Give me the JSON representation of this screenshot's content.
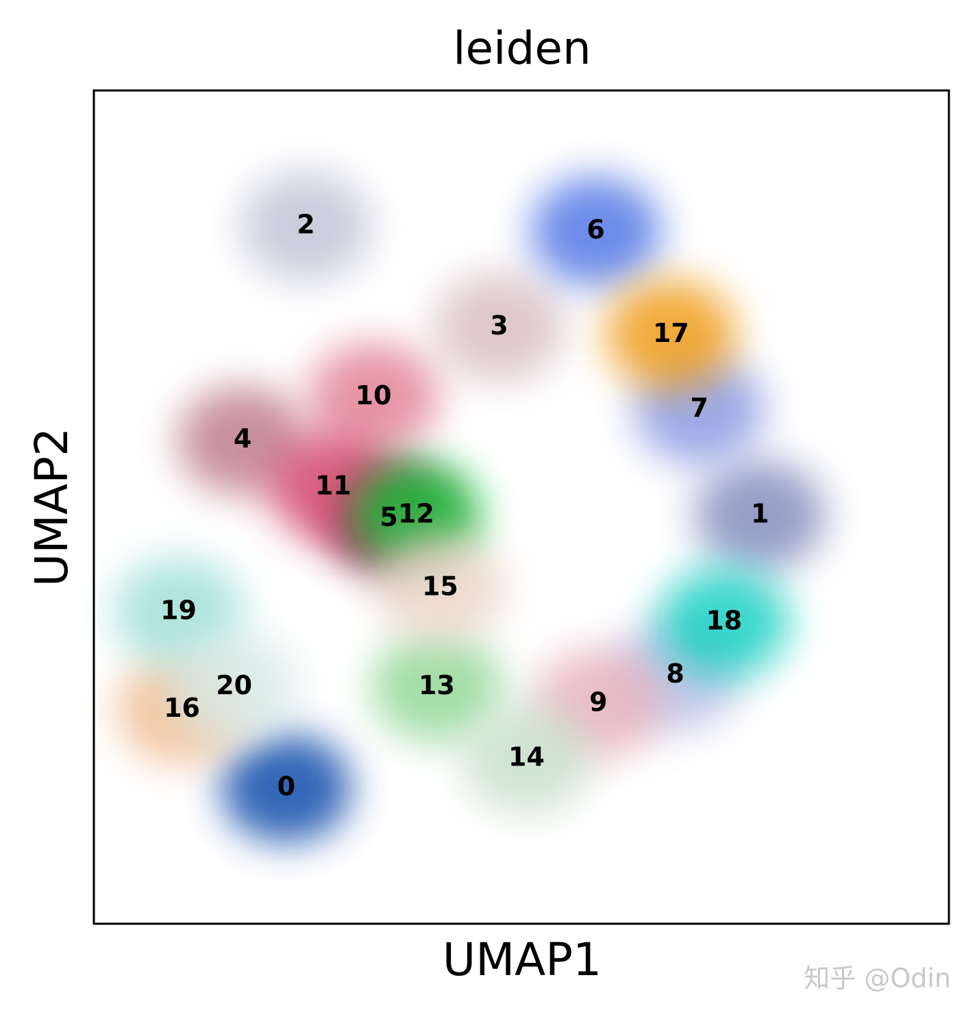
{
  "chart_data": {
    "type": "scatter",
    "title": "leiden",
    "xlabel": "UMAP1",
    "ylabel": "UMAP2",
    "xlim": [
      0,
      100
    ],
    "ylim": [
      0,
      100
    ],
    "watermark": "知乎 @Odin",
    "series": [
      {
        "name": "0",
        "color": "#023fa5",
        "x": 22.5,
        "y": 16.3
      },
      {
        "name": "1",
        "color": "#7d87b9",
        "x": 77.9,
        "y": 49.0
      },
      {
        "name": "2",
        "color": "#bec1d4",
        "x": 24.8,
        "y": 83.7
      },
      {
        "name": "3",
        "color": "#d6bcc0",
        "x": 47.4,
        "y": 71.6
      },
      {
        "name": "4",
        "color": "#bb7784",
        "x": 17.4,
        "y": 58.0
      },
      {
        "name": "5",
        "color": "#8e063b",
        "x": 34.5,
        "y": 48.6
      },
      {
        "name": "6",
        "color": "#4a6fe3",
        "x": 58.7,
        "y": 83.1
      },
      {
        "name": "7",
        "color": "#8595e1",
        "x": 70.8,
        "y": 61.7
      },
      {
        "name": "8",
        "color": "#b5bbe3",
        "x": 68.0,
        "y": 29.8
      },
      {
        "name": "9",
        "color": "#e6afb9",
        "x": 59.0,
        "y": 26.4
      },
      {
        "name": "10",
        "color": "#e07b91",
        "x": 32.7,
        "y": 63.2
      },
      {
        "name": "11",
        "color": "#d33f6a",
        "x": 28.0,
        "y": 52.4
      },
      {
        "name": "12",
        "color": "#11c638",
        "x": 37.7,
        "y": 49.0
      },
      {
        "name": "13",
        "color": "#8dd593",
        "x": 40.1,
        "y": 28.4
      },
      {
        "name": "14",
        "color": "#c6dec7",
        "x": 50.6,
        "y": 19.8
      },
      {
        "name": "15",
        "color": "#ead3c6",
        "x": 40.5,
        "y": 40.3
      },
      {
        "name": "16",
        "color": "#f0b98d",
        "x": 10.3,
        "y": 25.7
      },
      {
        "name": "17",
        "color": "#ef9708",
        "x": 67.5,
        "y": 70.7
      },
      {
        "name": "18",
        "color": "#0fcfc0",
        "x": 73.7,
        "y": 36.2
      },
      {
        "name": "19",
        "color": "#9cded6",
        "x": 9.9,
        "y": 37.4
      },
      {
        "name": "20",
        "color": "#d5eae7",
        "x": 16.4,
        "y": 28.4
      }
    ]
  }
}
